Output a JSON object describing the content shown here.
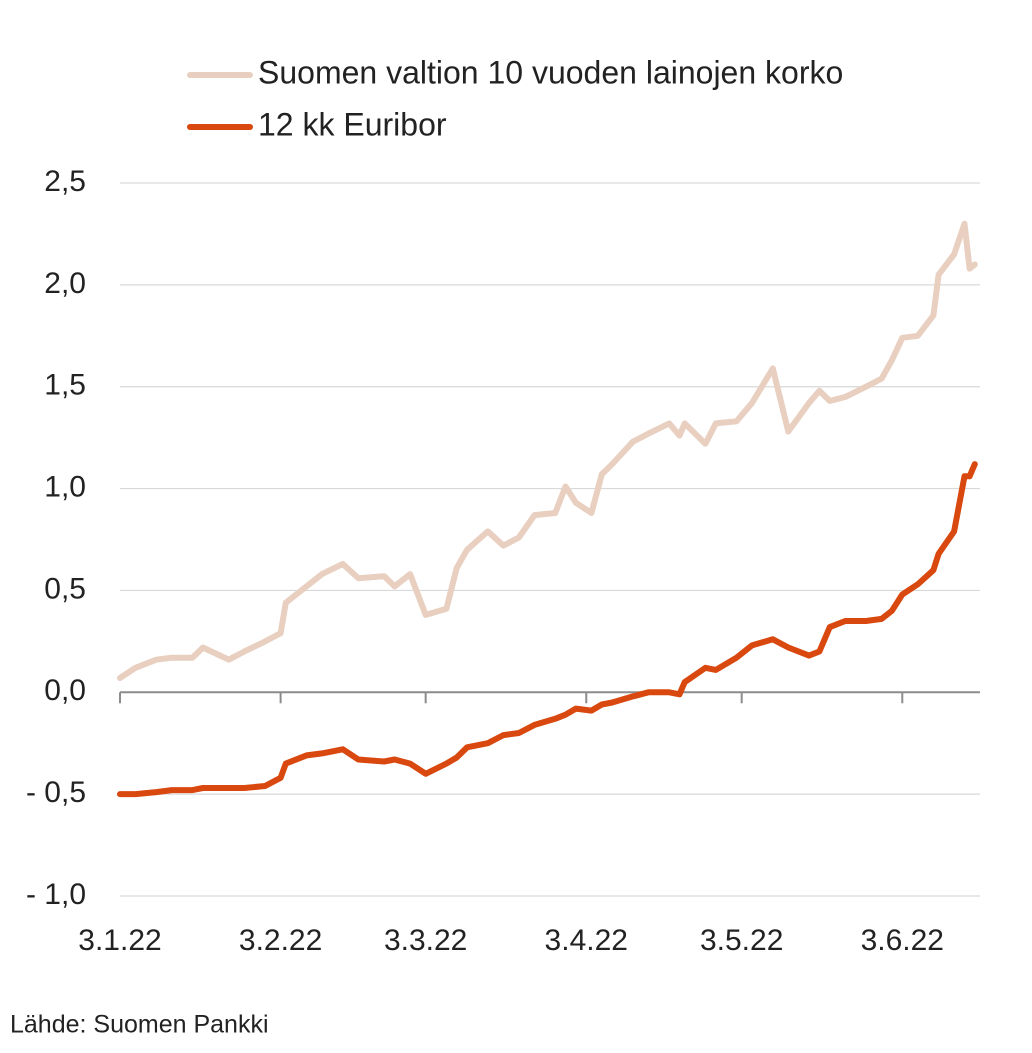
{
  "chart_data": {
    "type": "line",
    "source": "Lähde: Suomen Pankki",
    "x": [
      "2022-01-03",
      "2022-01-06",
      "2022-01-10",
      "2022-01-13",
      "2022-01-17",
      "2022-01-19",
      "2022-01-24",
      "2022-01-27",
      "2022-01-31",
      "2022-02-03",
      "2022-02-04",
      "2022-02-08",
      "2022-02-11",
      "2022-02-15",
      "2022-02-18",
      "2022-02-23",
      "2022-02-25",
      "2022-02-28",
      "2022-03-03",
      "2022-03-07",
      "2022-03-09",
      "2022-03-11",
      "2022-03-15",
      "2022-03-18",
      "2022-03-21",
      "2022-03-24",
      "2022-03-28",
      "2022-03-30",
      "2022-04-01",
      "2022-04-04",
      "2022-04-06",
      "2022-04-08",
      "2022-04-12",
      "2022-04-15",
      "2022-04-19",
      "2022-04-21",
      "2022-04-22",
      "2022-04-26",
      "2022-04-28",
      "2022-05-02",
      "2022-05-05",
      "2022-05-09",
      "2022-05-12",
      "2022-05-16",
      "2022-05-18",
      "2022-05-20",
      "2022-05-23",
      "2022-05-27",
      "2022-05-30",
      "2022-06-01",
      "2022-06-03",
      "2022-06-06",
      "2022-06-09",
      "2022-06-10",
      "2022-06-13",
      "2022-06-15",
      "2022-06-16",
      "2022-06-17"
    ],
    "series": [
      {
        "name": "Suomen valtion 10 vuoden lainojen korko",
        "color": "#e8cfc0",
        "values": [
          0.07,
          0.12,
          0.16,
          0.17,
          0.17,
          0.22,
          0.16,
          0.2,
          0.25,
          0.29,
          0.44,
          0.52,
          0.58,
          0.63,
          0.56,
          0.57,
          0.52,
          0.58,
          0.38,
          0.41,
          0.61,
          0.7,
          0.79,
          0.72,
          0.76,
          0.87,
          0.88,
          1.01,
          0.93,
          0.88,
          1.07,
          1.12,
          1.23,
          1.27,
          1.32,
          1.26,
          1.32,
          1.22,
          1.32,
          1.33,
          1.42,
          1.59,
          1.28,
          1.42,
          1.48,
          1.43,
          1.45,
          1.5,
          1.54,
          1.63,
          1.74,
          1.75,
          1.85,
          2.05,
          2.15,
          2.3,
          2.08,
          2.1
        ]
      },
      {
        "name": "12 kk Euribor",
        "color": "#d9480f",
        "values": [
          -0.5,
          -0.5,
          -0.49,
          -0.48,
          -0.48,
          -0.47,
          -0.47,
          -0.47,
          -0.46,
          -0.42,
          -0.35,
          -0.31,
          -0.3,
          -0.28,
          -0.33,
          -0.34,
          -0.33,
          -0.35,
          -0.4,
          -0.35,
          -0.32,
          -0.27,
          -0.25,
          -0.21,
          -0.2,
          -0.16,
          -0.13,
          -0.11,
          -0.08,
          -0.09,
          -0.06,
          -0.05,
          -0.02,
          0,
          0,
          -0.01,
          0.05,
          0.12,
          0.11,
          0.17,
          0.23,
          0.26,
          0.22,
          0.18,
          0.2,
          0.32,
          0.35,
          0.35,
          0.36,
          0.4,
          0.48,
          0.53,
          0.6,
          0.68,
          0.79,
          1.06,
          1.06,
          1.12
        ]
      }
    ],
    "xlim": [
      "2022-01-03",
      "2022-06-18"
    ],
    "xticks": [
      {
        "value": "2022-01-03",
        "label": "3.1.22"
      },
      {
        "value": "2022-02-03",
        "label": "3.2.22"
      },
      {
        "value": "2022-03-03",
        "label": "3.3.22"
      },
      {
        "value": "2022-04-03",
        "label": "3.4.22"
      },
      {
        "value": "2022-05-03",
        "label": "3.5.22"
      },
      {
        "value": "2022-06-03",
        "label": "3.6.22"
      }
    ],
    "ylim": [
      -1,
      2.5
    ],
    "yticks": [
      {
        "value": 2.5,
        "label": "2,5"
      },
      {
        "value": 2,
        "label": "2,0"
      },
      {
        "value": 1.5,
        "label": "1,5"
      },
      {
        "value": 1,
        "label": "1,0"
      },
      {
        "value": 0.5,
        "label": "0,5"
      },
      {
        "value": 0,
        "label": "0,0"
      },
      {
        "value": -0.5,
        "label": "- 0,5"
      },
      {
        "value": -1,
        "label": "- 1,0"
      }
    ],
    "grid": true
  }
}
